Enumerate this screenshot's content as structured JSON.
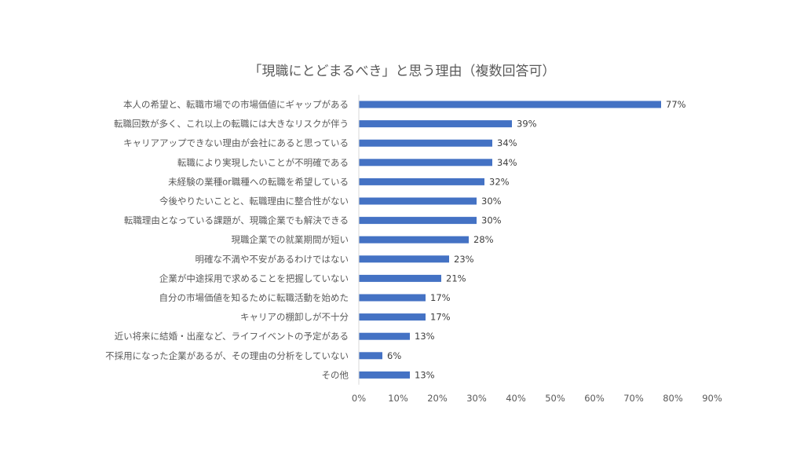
{
  "chart_data": {
    "type": "bar",
    "orientation": "horizontal",
    "title": "「現職にとどまるべき」と思う理由（複数回答可）",
    "categories": [
      "本人の希望と、転職市場での市場価値にギャップがある",
      "転職回数が多く、これ以上の転職には大きなリスクが伴う",
      "キャリアアップできない理由が会社にあると思っている",
      "転職により実現したいことが不明確である",
      "未経験の業種or職種への転職を希望している",
      "今後やりたいことと、転職理由に整合性がない",
      "転職理由となっている課題が、現職企業でも解決できる",
      "現職企業での就業期間が短い",
      "明確な不満や不安があるわけではない",
      "企業が中途採用で求めることを把握していない",
      "自分の市場価値を知るために転職活動を始めた",
      "キャリアの棚卸しが不十分",
      "近い将来に結婚・出産など、ライフイベントの予定がある",
      "不採用になった企業があるが、その理由の分析をしていない",
      "その他"
    ],
    "values": [
      77,
      39,
      34,
      34,
      32,
      30,
      30,
      28,
      23,
      21,
      17,
      17,
      13,
      6,
      13
    ],
    "value_labels": [
      "77%",
      "39%",
      "34%",
      "34%",
      "32%",
      "30%",
      "30%",
      "28%",
      "23%",
      "21%",
      "17%",
      "17%",
      "13%",
      "6%",
      "13%"
    ],
    "xlim": [
      0,
      90
    ],
    "x_ticks": [
      "0%",
      "10%",
      "20%",
      "30%",
      "40%",
      "50%",
      "60%",
      "70%",
      "80%",
      "90%"
    ],
    "x_tick_values": [
      0,
      10,
      20,
      30,
      40,
      50,
      60,
      70,
      80,
      90
    ],
    "xlabel": "",
    "ylabel": "",
    "grid": false,
    "legend": "none",
    "bar_color": "#4472C4",
    "axis_color": "#D9D9D9",
    "text_color": "#595959"
  }
}
